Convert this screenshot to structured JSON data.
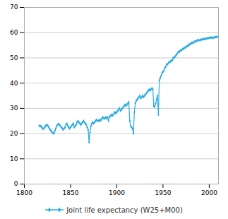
{
  "chart_data": {
    "type": "line",
    "x": [
      1816,
      1817,
      1818,
      1819,
      1820,
      1821,
      1822,
      1823,
      1824,
      1825,
      1826,
      1827,
      1828,
      1829,
      1830,
      1831,
      1832,
      1833,
      1834,
      1835,
      1836,
      1837,
      1838,
      1839,
      1840,
      1841,
      1842,
      1843,
      1844,
      1845,
      1846,
      1847,
      1848,
      1849,
      1850,
      1851,
      1852,
      1853,
      1854,
      1855,
      1856,
      1857,
      1858,
      1859,
      1860,
      1861,
      1862,
      1863,
      1864,
      1865,
      1866,
      1867,
      1868,
      1869,
      1870,
      1871,
      1872,
      1873,
      1874,
      1875,
      1876,
      1877,
      1878,
      1879,
      1880,
      1881,
      1882,
      1883,
      1884,
      1885,
      1886,
      1887,
      1888,
      1889,
      1890,
      1891,
      1892,
      1893,
      1894,
      1895,
      1896,
      1897,
      1898,
      1899,
      1900,
      1901,
      1902,
      1903,
      1904,
      1905,
      1906,
      1907,
      1908,
      1909,
      1910,
      1911,
      1912,
      1913,
      1914,
      1915,
      1916,
      1917,
      1918,
      1919,
      1920,
      1921,
      1922,
      1923,
      1924,
      1925,
      1926,
      1927,
      1928,
      1929,
      1930,
      1931,
      1932,
      1933,
      1934,
      1935,
      1936,
      1937,
      1938,
      1939,
      1940,
      1941,
      1942,
      1943,
      1944,
      1945,
      1946,
      1947,
      1948,
      1949,
      1950,
      1951,
      1952,
      1953,
      1954,
      1955,
      1956,
      1957,
      1958,
      1959,
      1960,
      1961,
      1962,
      1963,
      1964,
      1965,
      1966,
      1967,
      1968,
      1969,
      1970,
      1971,
      1972,
      1973,
      1974,
      1975,
      1976,
      1977,
      1978,
      1979,
      1980,
      1981,
      1982,
      1983,
      1984,
      1985,
      1986,
      1987,
      1988,
      1989,
      1990,
      1991,
      1992,
      1993,
      1994,
      1995,
      1996,
      1997,
      1998,
      1999,
      2000,
      2001,
      2002,
      2003,
      2004,
      2005,
      2006,
      2007,
      2008,
      2009,
      2010
    ],
    "series": [
      {
        "name": "Joint life expectancy (W25+M00)",
        "color": "#29ABE2",
        "marker": "diamond",
        "line_style": "solid",
        "values": [
          23.0,
          23.2,
          22.8,
          22.5,
          21.8,
          22.0,
          22.5,
          23.0,
          23.5,
          23.2,
          22.8,
          22.0,
          21.5,
          21.0,
          20.5,
          20.2,
          20.0,
          21.0,
          22.0,
          23.0,
          23.5,
          23.8,
          23.5,
          23.0,
          22.5,
          22.0,
          21.5,
          22.0,
          22.5,
          23.5,
          24.0,
          23.0,
          22.5,
          22.0,
          22.5,
          23.0,
          23.5,
          24.0,
          22.5,
          23.0,
          23.5,
          24.5,
          25.0,
          24.5,
          24.0,
          23.5,
          24.0,
          24.5,
          25.0,
          24.5,
          24.0,
          23.5,
          22.5,
          21.5,
          16.5,
          20.5,
          23.0,
          24.0,
          24.5,
          24.0,
          24.5,
          25.0,
          25.5,
          25.0,
          25.0,
          25.5,
          25.0,
          25.5,
          26.0,
          26.5,
          26.0,
          26.0,
          26.5,
          26.0,
          26.5,
          25.0,
          26.5,
          27.0,
          27.5,
          27.0,
          27.5,
          28.0,
          28.5,
          28.0,
          28.5,
          29.0,
          29.5,
          30.0,
          29.0,
          29.5,
          30.0,
          30.5,
          31.0,
          31.5,
          31.0,
          31.5,
          32.0,
          32.5,
          25.0,
          23.0,
          22.5,
          22.0,
          20.0,
          28.5,
          32.0,
          33.0,
          33.5,
          34.0,
          34.5,
          35.0,
          34.0,
          34.5,
          35.0,
          34.5,
          35.0,
          35.5,
          36.0,
          36.5,
          37.0,
          37.5,
          37.0,
          37.5,
          38.0,
          37.5,
          31.0,
          30.5,
          32.0,
          33.5,
          35.0,
          27.5,
          41.0,
          42.0,
          43.0,
          44.0,
          44.5,
          45.0,
          46.0,
          46.5,
          47.5,
          47.5,
          48.0,
          48.5,
          48.5,
          49.0,
          49.0,
          50.0,
          50.0,
          50.5,
          51.0,
          51.5,
          52.0,
          52.5,
          52.5,
          53.0,
          53.0,
          53.5,
          53.5,
          54.0,
          54.0,
          54.5,
          54.5,
          55.0,
          55.0,
          55.5,
          55.5,
          56.0,
          56.0,
          56.0,
          56.5,
          56.5,
          56.5,
          57.0,
          57.0,
          57.0,
          57.0,
          57.2,
          57.3,
          57.3,
          57.5,
          57.5,
          57.5,
          57.7,
          57.8,
          57.8,
          58.0,
          58.0,
          58.0,
          58.0,
          58.0,
          58.0,
          58.2,
          58.3,
          58.3,
          58.4,
          58.5
        ]
      }
    ],
    "xlim": [
      1800,
      2010
    ],
    "xticks": [
      1800,
      1850,
      1900,
      1950,
      2000
    ],
    "ylim": [
      0,
      70
    ],
    "yticks": [
      0,
      10,
      20,
      30,
      40,
      50,
      60,
      70
    ],
    "grid": "y",
    "legend": "bottom"
  }
}
